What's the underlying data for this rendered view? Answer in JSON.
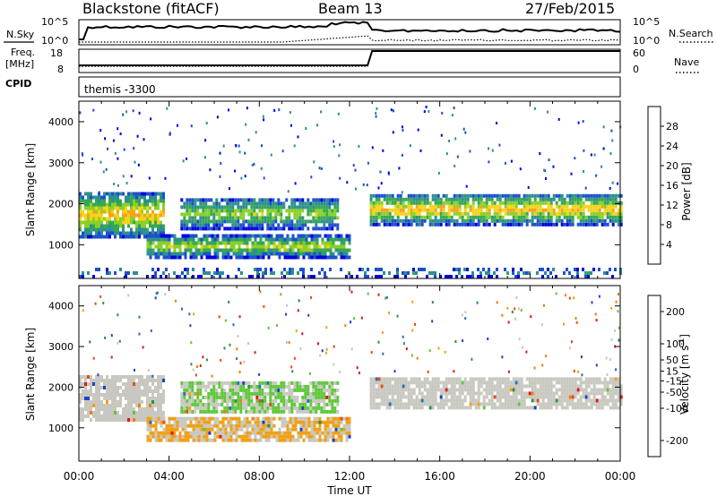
{
  "header": {
    "station": "Blackstone (fitACF)",
    "beam": "Beam 13",
    "date": "27/Feb/2015"
  },
  "left_labels": {
    "nsky": "N.Sky",
    "freq_line1": "Freq.",
    "freq_line2": "[MHz]",
    "cpid": "CPID"
  },
  "right_labels": {
    "nsearch": "N.Search",
    "nave": "Nave"
  },
  "cpid_text": "themis -3300",
  "top_ticks": {
    "noise_left": [
      "10^5",
      "10^0"
    ],
    "noise_right": [
      "10^5",
      "10^0"
    ],
    "freq_left": [
      "18",
      "8"
    ],
    "nave_right": [
      "60",
      "0"
    ]
  },
  "colors": {
    "power_scale": [
      "#0000dd",
      "#1e4fd0",
      "#2f8f8f",
      "#35a853",
      "#8ad028",
      "#f5d31c",
      "#f5a21c",
      "#f06618",
      "#dd1010"
    ],
    "velocity_scale": [
      "#2140c8",
      "#2b6fb3",
      "#2d9143",
      "#5ec83a",
      "#c8c8c0",
      "#f0a018",
      "#f07c10",
      "#e64c10",
      "#e01818"
    ]
  },
  "chart_data": [
    {
      "type": "heatmap",
      "name": "power",
      "ylabel": "Slant Range [km]",
      "x_ticks": [
        "00:00",
        "04:00",
        "08:00",
        "12:00",
        "16:00",
        "20:00",
        "00:00"
      ],
      "y_ticks": [
        1000,
        2000,
        3000,
        4000
      ],
      "ylim": [
        180,
        4500
      ],
      "xlim_hours": [
        0,
        24
      ],
      "colorbar": {
        "label": "Power [dB]",
        "ticks": [
          4,
          8,
          12,
          16,
          20,
          24,
          28
        ],
        "range": [
          0,
          32
        ]
      },
      "echo_bands": [
        {
          "t": [
            0.0,
            3.8
          ],
          "r": [
            1150,
            2250
          ],
          "core_db": 22
        },
        {
          "t": [
            3.0,
            12.0
          ],
          "r": [
            650,
            1200
          ],
          "core_db": 18
        },
        {
          "t": [
            4.5,
            11.5
          ],
          "r": [
            1350,
            2100
          ],
          "core_db": 16
        },
        {
          "t": [
            12.9,
            24.0
          ],
          "r": [
            1450,
            2200
          ],
          "core_db": 22
        },
        {
          "t": [
            0.0,
            24.0
          ],
          "r": [
            180,
            400
          ],
          "core_db": 10
        }
      ]
    },
    {
      "type": "heatmap",
      "name": "velocity",
      "ylabel": "Slant Range [km]",
      "xlabel": "Time UT",
      "x_ticks": [
        "00:00",
        "04:00",
        "08:00",
        "12:00",
        "16:00",
        "20:00",
        "00:00"
      ],
      "y_ticks": [
        1000,
        2000,
        3000,
        4000
      ],
      "ylim": [
        180,
        4500
      ],
      "xlim_hours": [
        0,
        24
      ],
      "colorbar": {
        "label": "Velocity [m s^-1]",
        "ticks": [
          200,
          100,
          50,
          15,
          -15,
          -50,
          -100,
          -200
        ],
        "range": [
          -250,
          250
        ]
      },
      "echo_bands": [
        {
          "t": [
            0.0,
            3.8
          ],
          "r": [
            1150,
            2250
          ],
          "dominant_v": 0
        },
        {
          "t": [
            3.0,
            12.0
          ],
          "r": [
            650,
            1200
          ],
          "dominant_v": -30
        },
        {
          "t": [
            4.5,
            11.5
          ],
          "r": [
            1350,
            2100
          ],
          "dominant_v": 30
        },
        {
          "t": [
            12.9,
            24.0
          ],
          "r": [
            1450,
            2200
          ],
          "dominant_v": 0
        }
      ]
    }
  ]
}
